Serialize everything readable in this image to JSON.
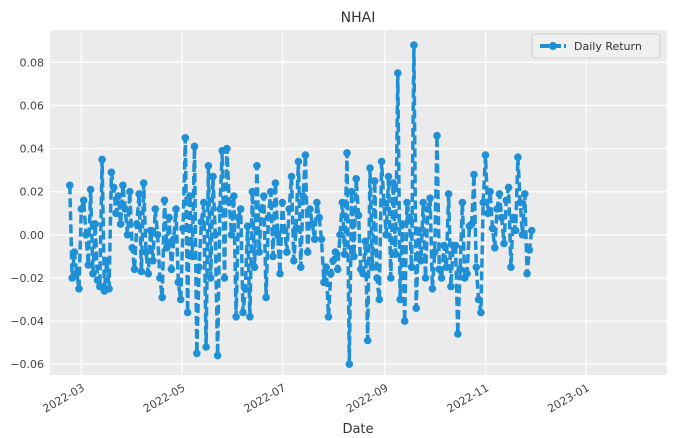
{
  "chart_data": {
    "type": "line",
    "title": "NHAI",
    "xlabel": "Date",
    "ylabel": "",
    "xlim": [
      "2022-02-10",
      "2023-02-19"
    ],
    "ylim": [
      -0.065,
      0.095
    ],
    "grid": true,
    "legend_position": "top-right",
    "x_tick_labels": [
      "2022-03",
      "2022-05",
      "2022-07",
      "2022-09",
      "2022-11",
      "2023-01"
    ],
    "y_tick_values": [
      -0.06,
      -0.04,
      -0.02,
      0.0,
      0.02,
      0.04,
      0.06,
      0.08
    ],
    "y_tick_labels": [
      "−0.06",
      "−0.04",
      "−0.02",
      "0.00",
      "0.02",
      "0.04",
      "0.06",
      "0.08"
    ],
    "series": [
      {
        "name": "Daily Return",
        "color": "#1f8fd6",
        "line_style": "dashed",
        "marker": "circle",
        "start_date": "2022-02-22",
        "step_days": 1.4,
        "values": [
          0.023,
          -0.02,
          -0.008,
          -0.018,
          -0.025,
          0.012,
          0.016,
          0.0,
          -0.014,
          0.021,
          -0.018,
          0.005,
          -0.021,
          -0.024,
          0.035,
          -0.026,
          -0.012,
          -0.025,
          0.029,
          0.022,
          0.01,
          0.018,
          0.005,
          0.023,
          0.012,
          0.0,
          0.02,
          -0.006,
          -0.016,
          0.005,
          0.019,
          -0.017,
          0.024,
          -0.008,
          -0.018,
          0.002,
          -0.012,
          0.012,
          0.0,
          -0.02,
          -0.029,
          0.016,
          -0.006,
          0.008,
          -0.016,
          -0.002,
          0.012,
          -0.022,
          -0.03,
          0.003,
          0.045,
          -0.036,
          0.018,
          -0.01,
          0.041,
          -0.055,
          -0.015,
          0.006,
          0.015,
          -0.052,
          0.032,
          -0.02,
          0.027,
          0.0,
          -0.056,
          0.012,
          0.039,
          -0.02,
          0.04,
          0.015,
          0.0,
          0.018,
          -0.038,
          0.008,
          0.012,
          -0.036,
          -0.025,
          0.004,
          -0.038,
          0.02,
          -0.015,
          0.032,
          -0.008,
          0.012,
          0.018,
          -0.029,
          0.008,
          0.02,
          -0.01,
          0.024,
          0.0,
          -0.018,
          0.015,
          0.002,
          -0.008,
          0.012,
          0.027,
          -0.012,
          0.003,
          0.034,
          -0.015,
          0.018,
          0.037,
          -0.008,
          0.012,
          0.005,
          -0.002,
          0.015,
          0.008,
          -0.002,
          -0.022,
          -0.015,
          -0.038,
          -0.018,
          -0.012,
          -0.008,
          -0.016,
          0.0,
          0.015,
          -0.009,
          0.038,
          -0.06,
          0.02,
          -0.01,
          0.026,
          0.009,
          -0.016,
          -0.018,
          -0.003,
          -0.049,
          0.031,
          -0.015,
          0.025,
          -0.02,
          -0.03,
          0.034,
          0.015,
          0.0,
          0.027,
          -0.02,
          0.024,
          -0.009,
          0.075,
          -0.03,
          0.005,
          -0.04,
          0.015,
          0.008,
          -0.015,
          0.088,
          -0.034,
          0.002,
          -0.012,
          0.015,
          -0.02,
          0.012,
          0.017,
          -0.025,
          -0.008,
          0.046,
          -0.016,
          -0.02,
          -0.005,
          -0.015,
          0.019,
          -0.024,
          -0.005,
          -0.005,
          -0.046,
          -0.016,
          0.015,
          -0.02,
          -0.018,
          0.004,
          0.005,
          0.028,
          -0.015,
          -0.03,
          -0.036,
          0.015,
          0.037,
          0.01,
          0.02,
          0.003,
          -0.006,
          0.012,
          0.019,
          0.008,
          -0.004,
          0.016,
          0.022,
          -0.015,
          0.008,
          0.002,
          0.036,
          0.015,
          0.0,
          0.019,
          -0.018,
          -0.007,
          0.002
        ]
      }
    ]
  }
}
